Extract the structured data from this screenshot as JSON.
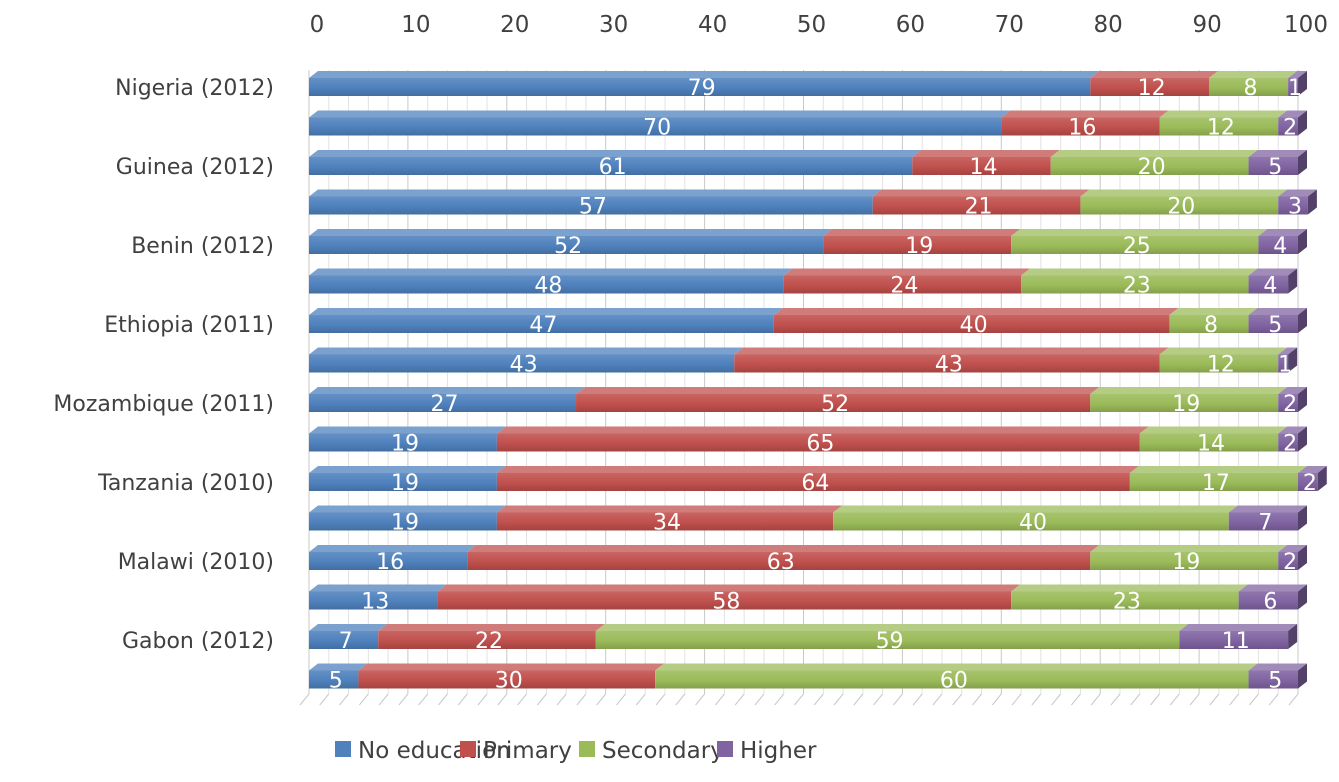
{
  "chart_data": {
    "type": "bar",
    "orientation": "horizontal",
    "stacked": true,
    "xlim": [
      0,
      100
    ],
    "x_ticks": [
      "0",
      "10",
      "20",
      "30",
      "40",
      "50",
      "60",
      "70",
      "80",
      "90",
      "100"
    ],
    "x_axis_position": "top",
    "grid": true,
    "legend_position": "bottom",
    "categories": [
      "Nigeria (2012)",
      "",
      "Guinea (2012)",
      "",
      "Benin (2012)",
      "",
      "Ethiopia (2011)",
      "",
      "Mozambique (2011)",
      "",
      "Tanzania (2010)",
      "",
      "Malawi (2010)",
      "",
      "Gabon (2012)",
      ""
    ],
    "series": [
      {
        "name": "No education",
        "color": "#4F81BD",
        "values": [
          79,
          70,
          61,
          57,
          52,
          48,
          47,
          43,
          27,
          19,
          19,
          19,
          16,
          13,
          7,
          5
        ]
      },
      {
        "name": "Primary",
        "color": "#C0504D",
        "values": [
          12,
          16,
          14,
          21,
          19,
          24,
          40,
          43,
          52,
          65,
          64,
          34,
          63,
          58,
          22,
          30
        ]
      },
      {
        "name": "Secondary",
        "color": "#9BBB59",
        "values": [
          8,
          12,
          20,
          20,
          25,
          23,
          8,
          12,
          19,
          14,
          17,
          40,
          19,
          23,
          59,
          60
        ]
      },
      {
        "name": "Higher",
        "color": "#8064A2",
        "values": [
          1,
          2,
          5,
          3,
          4,
          4,
          5,
          1,
          2,
          2,
          2,
          7,
          2,
          6,
          11,
          5
        ]
      }
    ]
  }
}
